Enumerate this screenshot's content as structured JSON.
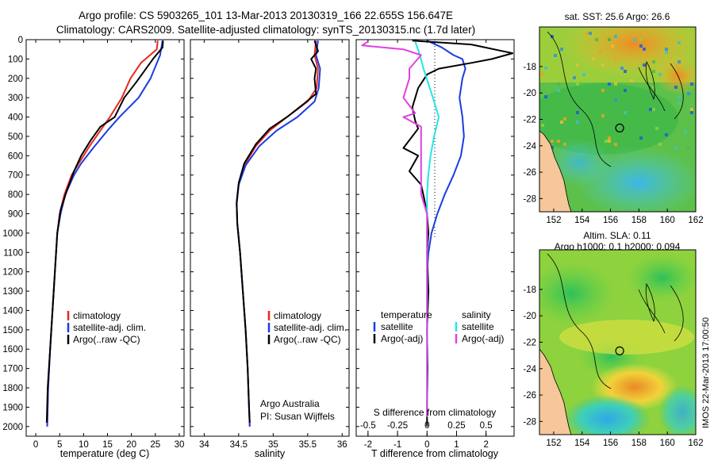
{
  "title_line1": "Argo profile: CS 5903265_101 13-Mar-2013 20130319_166 22.655S 156.647E",
  "title_line2": "Climatology: CARS2009. Satellite-adjusted climatology: synTS_20130315.nc (1.7d later)",
  "colors": {
    "climatology": "#e8281e",
    "satellite": "#1c3ce0",
    "argo": "#000000",
    "sat_diff_salinity": "#22e6e6",
    "argo_diff_salinity": "#e040e0",
    "land": "#f5c79a"
  },
  "legend": {
    "climatology": "climatology",
    "satellite_adj": "satellite-adj. clim.",
    "argo": "Argo(..raw -QC)"
  },
  "diff_legend": {
    "temperature_header": "temperature",
    "salinity_header": "salinity",
    "satellite": "satellite",
    "argo_adj": "Argo(-adj)"
  },
  "credit_line1": "Argo Australia",
  "credit_line2": "PI: Susan Wijffels",
  "diff_top_label": "S difference from climatology",
  "map1_title": "sat. SST: 25.6  Argo: 26.6",
  "map2_title_line1": "Altim. SLA: 0.11",
  "map2_title_line2": "Argo h1000: 0.1  h2000: 0.094",
  "side_label": "IMOS 22-Mar-2013 17:00:50",
  "chart_data": [
    {
      "type": "line",
      "name": "temperature profile",
      "xlabel": "temperature (deg C)",
      "xlim": [
        -2,
        31
      ],
      "ylim": [
        0,
        2050
      ],
      "y_reversed": true,
      "xticks": [
        0,
        5,
        10,
        15,
        20,
        25,
        30
      ],
      "yticks": [
        0,
        100,
        200,
        300,
        400,
        500,
        600,
        700,
        800,
        900,
        1000,
        1100,
        1200,
        1300,
        1400,
        1500,
        1600,
        1700,
        1800,
        1900,
        2000
      ],
      "series": [
        {
          "name": "climatology",
          "color_key": "climatology",
          "points": [
            [
              25.5,
              5
            ],
            [
              25.3,
              50
            ],
            [
              22,
              120
            ],
            [
              19.8,
              200
            ],
            [
              18,
              300
            ],
            [
              15.5,
              400
            ],
            [
              13.5,
              470
            ],
            [
              11,
              560
            ],
            [
              9,
              640
            ],
            [
              7.5,
              700
            ],
            [
              6,
              800
            ],
            [
              5,
              900
            ],
            [
              4.5,
              1000
            ],
            [
              4,
              1200
            ],
            [
              3.5,
              1400
            ],
            [
              3,
              1600
            ],
            [
              2.6,
              1800
            ],
            [
              2.4,
              2000
            ]
          ]
        },
        {
          "name": "satellite-adj. clim.",
          "color_key": "satellite",
          "points": [
            [
              26.5,
              5
            ],
            [
              26,
              80
            ],
            [
              24,
              200
            ],
            [
              21.5,
              300
            ],
            [
              17.5,
              400
            ],
            [
              15,
              470
            ],
            [
              12,
              560
            ],
            [
              9.5,
              640
            ],
            [
              8,
              700
            ],
            [
              6.2,
              800
            ],
            [
              5.2,
              900
            ],
            [
              4.5,
              1000
            ],
            [
              4,
              1200
            ],
            [
              3.5,
              1400
            ],
            [
              3,
              1600
            ],
            [
              2.6,
              1800
            ],
            [
              2.4,
              2000
            ]
          ]
        },
        {
          "name": "Argo(..raw -QC)",
          "color_key": "argo",
          "points": [
            [
              26.6,
              5
            ],
            [
              26.5,
              40
            ],
            [
              24.5,
              100
            ],
            [
              21,
              220
            ],
            [
              18.5,
              300
            ],
            [
              16.5,
              400
            ],
            [
              13.5,
              450
            ],
            [
              11.5,
              520
            ],
            [
              9.5,
              600
            ],
            [
              8,
              680
            ],
            [
              6.5,
              780
            ],
            [
              5.2,
              880
            ],
            [
              4.5,
              1000
            ],
            [
              4,
              1200
            ],
            [
              3.5,
              1400
            ],
            [
              3,
              1600
            ],
            [
              2.5,
              1800
            ],
            [
              2.3,
              1980
            ]
          ]
        }
      ]
    },
    {
      "type": "line",
      "name": "salinity profile",
      "xlabel": "salinity",
      "xlim": [
        33.8,
        36.1
      ],
      "ylim": [
        0,
        2050
      ],
      "y_reversed": true,
      "xticks": [
        34,
        34.5,
        35,
        35.5,
        36
      ],
      "series": [
        {
          "name": "climatology",
          "color_key": "climatology",
          "points": [
            [
              35.62,
              5
            ],
            [
              35.6,
              80
            ],
            [
              35.65,
              150
            ],
            [
              35.63,
              250
            ],
            [
              35.5,
              320
            ],
            [
              35.2,
              400
            ],
            [
              34.95,
              470
            ],
            [
              34.75,
              550
            ],
            [
              34.58,
              650
            ],
            [
              34.5,
              750
            ],
            [
              34.47,
              850
            ],
            [
              34.48,
              950
            ],
            [
              34.52,
              1100
            ],
            [
              34.56,
              1300
            ],
            [
              34.6,
              1500
            ],
            [
              34.63,
              1700
            ],
            [
              34.65,
              1900
            ],
            [
              34.66,
              2000
            ]
          ]
        },
        {
          "name": "satellite-adj. clim.",
          "color_key": "satellite",
          "points": [
            [
              35.65,
              5
            ],
            [
              35.62,
              80
            ],
            [
              35.68,
              150
            ],
            [
              35.66,
              250
            ],
            [
              35.6,
              320
            ],
            [
              35.35,
              400
            ],
            [
              35.05,
              470
            ],
            [
              34.8,
              550
            ],
            [
              34.6,
              650
            ],
            [
              34.5,
              750
            ],
            [
              34.47,
              850
            ],
            [
              34.48,
              950
            ],
            [
              34.52,
              1100
            ],
            [
              34.56,
              1300
            ],
            [
              34.6,
              1500
            ],
            [
              34.63,
              1700
            ],
            [
              34.65,
              1900
            ],
            [
              34.66,
              2000
            ]
          ]
        },
        {
          "name": "Argo(..raw -QC)",
          "color_key": "argo",
          "points": [
            [
              35.6,
              5
            ],
            [
              35.65,
              60
            ],
            [
              35.55,
              100
            ],
            [
              35.62,
              150
            ],
            [
              35.6,
              200
            ],
            [
              35.62,
              280
            ],
            [
              35.45,
              330
            ],
            [
              35.2,
              400
            ],
            [
              34.95,
              460
            ],
            [
              34.75,
              540
            ],
            [
              34.58,
              640
            ],
            [
              34.5,
              740
            ],
            [
              34.47,
              840
            ],
            [
              34.48,
              950
            ],
            [
              34.52,
              1100
            ],
            [
              34.56,
              1300
            ],
            [
              34.6,
              1500
            ],
            [
              34.63,
              1700
            ],
            [
              34.65,
              1900
            ],
            [
              34.66,
              1980
            ]
          ]
        }
      ]
    },
    {
      "type": "line",
      "name": "difference from climatology",
      "xlabel": "T difference from climatology",
      "top_xlabel": "S difference from climatology",
      "xlim": [
        -2.4,
        2.95
      ],
      "top_xlim": [
        -0.6,
        0.7375
      ],
      "ylim": [
        0,
        2050
      ],
      "y_reversed": true,
      "xticks": [
        -2,
        -1,
        0,
        1,
        2
      ],
      "top_xticks": [
        -0.5,
        -0.25,
        0,
        0.25,
        0.5
      ],
      "top_xtick_labels": [
        "-0.5",
        "-0.25",
        "0",
        "0.25",
        "0.5"
      ],
      "series": [
        {
          "name": "satellite (temperature)",
          "color_key": "satellite",
          "points": [
            [
              0,
              5
            ],
            [
              0.5,
              40
            ],
            [
              0.9,
              80
            ],
            [
              1.2,
              100
            ],
            [
              1.3,
              150
            ],
            [
              1.2,
              200
            ],
            [
              1.1,
              300
            ],
            [
              1.2,
              400
            ],
            [
              1.25,
              500
            ],
            [
              1.15,
              600
            ],
            [
              0.9,
              700
            ],
            [
              0.6,
              800
            ],
            [
              0.35,
              900
            ],
            [
              0.15,
              1000
            ],
            [
              0.05,
              1100
            ],
            [
              0,
              1200
            ]
          ]
        },
        {
          "name": "Argo(-adj) (temperature)",
          "color_key": "argo",
          "points": [
            [
              -0.5,
              5
            ],
            [
              1.5,
              25
            ],
            [
              2.9,
              70
            ],
            [
              2.2,
              100
            ],
            [
              1.5,
              120
            ],
            [
              0.4,
              150
            ],
            [
              0,
              180
            ],
            [
              -0.3,
              250
            ],
            [
              -0.5,
              350
            ],
            [
              -0.4,
              420
            ],
            [
              -0.3,
              460
            ],
            [
              -0.8,
              560
            ],
            [
              -0.3,
              600
            ],
            [
              -0.6,
              680
            ],
            [
              -0.2,
              750
            ],
            [
              -0.1,
              820
            ],
            [
              0,
              900
            ],
            [
              0.05,
              1000
            ],
            [
              0,
              1100
            ],
            [
              0.05,
              1300
            ],
            [
              0,
              1500
            ],
            [
              0.02,
              1700
            ],
            [
              0,
              1900
            ],
            [
              0,
              2000
            ]
          ]
        },
        {
          "name": "satellite (salinity)",
          "color_key": "sat_diff_salinity",
          "points": [
            [
              -0.1,
              10
            ],
            [
              -0.06,
              80
            ],
            [
              -0.03,
              150
            ],
            [
              0.05,
              300
            ],
            [
              0.1,
              400
            ],
            [
              0.06,
              500
            ],
            [
              0.03,
              600
            ],
            [
              0.01,
              700
            ],
            [
              0,
              800
            ],
            [
              0,
              900
            ],
            [
              0,
              1200
            ],
            [
              0,
              1500
            ],
            [
              0,
              1800
            ],
            [
              0,
              1950
            ]
          ]
        },
        {
          "name": "Argo(-adj) (salinity)",
          "color_key": "argo_diff_salinity",
          "points": [
            [
              -0.5,
              10
            ],
            [
              -0.55,
              30
            ],
            [
              -0.2,
              50
            ],
            [
              -0.05,
              80
            ],
            [
              -0.15,
              150
            ],
            [
              -0.15,
              200
            ],
            [
              -0.2,
              300
            ],
            [
              -0.1,
              380
            ],
            [
              -0.2,
              400
            ],
            [
              -0.05,
              450
            ],
            [
              -0.05,
              500
            ],
            [
              -0.05,
              600
            ],
            [
              -0.05,
              700
            ],
            [
              -0.05,
              800
            ],
            [
              0,
              900
            ],
            [
              0,
              1000
            ],
            [
              0,
              1200
            ],
            [
              0,
              1500
            ],
            [
              0,
              1800
            ],
            [
              0,
              1950
            ]
          ]
        }
      ]
    },
    {
      "type": "heatmap",
      "name": "satellite SST map",
      "title": "sat. SST: 25.6  Argo: 26.6",
      "xlim": [
        151,
        162
      ],
      "ylim": [
        -29,
        -15
      ],
      "xticks": [
        152,
        154,
        156,
        158,
        160,
        162
      ],
      "yticks": [
        -18,
        -20,
        -22,
        -24,
        -26,
        -28
      ],
      "xtick_labels": [
        "152",
        "154",
        "156",
        "158",
        "160",
        "162"
      ],
      "ytick_labels": [
        "-18",
        "-20",
        "-22",
        "-24",
        "-26",
        "-28"
      ],
      "argo_position": [
        156.647,
        -22.655
      ]
    },
    {
      "type": "heatmap",
      "name": "altimetry SLA map",
      "title": "Altim. SLA: 0.11",
      "xlim": [
        151,
        162
      ],
      "ylim": [
        -29,
        -15
      ],
      "xticks": [
        152,
        154,
        156,
        158,
        160,
        162
      ],
      "yticks": [
        -18,
        -20,
        -22,
        -24,
        -26,
        -28
      ],
      "xtick_labels": [
        "152",
        "154",
        "156",
        "158",
        "160",
        "162"
      ],
      "ytick_labels": [
        "-18",
        "-20",
        "-22",
        "-24",
        "-26",
        "-28"
      ],
      "argo_position": [
        156.647,
        -22.655
      ]
    }
  ]
}
